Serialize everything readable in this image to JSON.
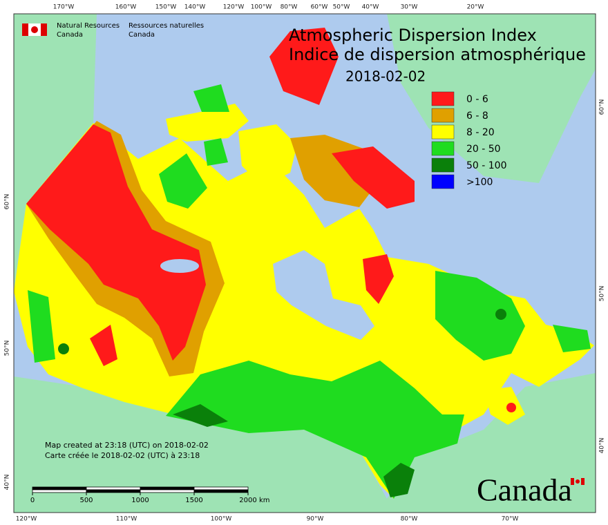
{
  "header": {
    "en": [
      "Natural Resources",
      "Canada"
    ],
    "fr": [
      "Ressources naturelles",
      "Canada"
    ]
  },
  "title": [
    "Atmospheric Dispersion Index",
    "Indice de dispersion atmosphérique"
  ],
  "date": "2018-02-02",
  "legend": [
    {
      "label": "0 - 6",
      "color": "#ff1a1a"
    },
    {
      "label": "6 - 8",
      "color": "#e0a000"
    },
    {
      "label": "8 - 20",
      "color": "#ffff00"
    },
    {
      "label": "20 - 50",
      "color": "#1fdc1f"
    },
    {
      "label": "50 - 100",
      "color": "#0a800a"
    },
    {
      "label": ">100",
      "color": "#0000ff"
    }
  ],
  "top_longitudes": [
    "170°W",
    "160°W",
    "150°W",
    "140°W",
    "120°W",
    "100°W",
    "80°W",
    "60°W",
    "50°W",
    "40°W",
    "30°W",
    "20°W"
  ],
  "bottom_longitudes": [
    "120°W",
    "110°W",
    "100°W",
    "90°W",
    "80°W",
    "70°W"
  ],
  "left_latitudes": [
    "60°N",
    "50°N",
    "40°N"
  ],
  "right_latitudes": [
    "60°N",
    "50°N",
    "40°N"
  ],
  "footer": [
    "Map created at 23:18 (UTC) on 2018-02-02",
    "Carte créée le 2018-02-02 (UTC) à 23:18"
  ],
  "scale": {
    "ticks": [
      0,
      500,
      1000,
      1500,
      2000
    ],
    "unit": "km"
  },
  "wordmark": "Canada"
}
